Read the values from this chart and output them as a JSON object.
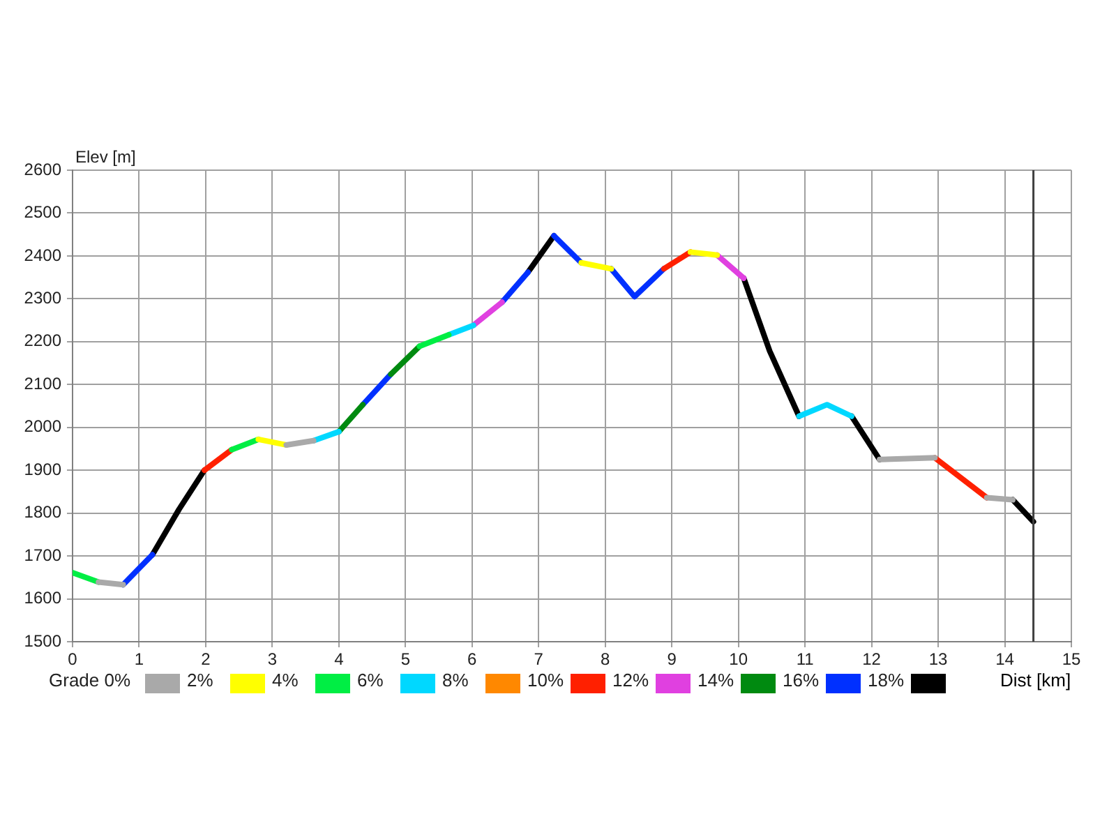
{
  "chart_data": {
    "type": "line",
    "ylabel": "Elev [m]",
    "xlabel": "Dist [km]",
    "legend_title": "Grade 0%",
    "legend": "bottom",
    "grid": true,
    "marker": "none",
    "line_style": "solid",
    "xlim": [
      0,
      15
    ],
    "xticks": [
      0,
      1,
      2,
      3,
      4,
      5,
      6,
      7,
      8,
      9,
      10,
      11,
      12,
      13,
      14,
      15
    ],
    "ylim": [
      1500,
      2600
    ],
    "yticks": [
      1500,
      1600,
      1700,
      1800,
      1900,
      2000,
      2100,
      2200,
      2300,
      2400,
      2500,
      2600
    ],
    "ref_lines": [
      {
        "axis": "x",
        "value": 14.43,
        "color": "#404040"
      }
    ],
    "series": [
      {
        "name": "2%",
        "color": "#a9a9a9",
        "x": [
          0.39,
          0.76,
          2.0,
          3.21,
          3.62,
          8.0,
          12.12,
          12.95,
          13.3,
          13.73,
          14.12
        ],
        "values": [
          1639,
          1633,
          null,
          1959,
          1969,
          null,
          1925,
          1929,
          null,
          1836,
          1831
        ]
      },
      {
        "name": "4%",
        "color": "#ffff00",
        "x": [
          2.79,
          3.21,
          5.5,
          7.64,
          8.09,
          8.7,
          9.28,
          9.68
        ],
        "values": [
          1972,
          1959,
          null,
          2384,
          2370,
          null,
          2409,
          2402
        ]
      },
      {
        "name": "6%",
        "color": "#00ee44",
        "x": [
          0,
          0.39,
          1.4,
          2.39,
          2.79,
          4.0,
          5.21,
          5.65
        ],
        "values": [
          1661,
          1639,
          null,
          1948,
          1972,
          null,
          2189,
          2216
        ]
      },
      {
        "name": "8%",
        "color": "#00d8ff",
        "x": [
          3.62,
          4.0,
          4.8,
          5.65,
          6.02,
          8.5,
          10.91,
          11.33,
          11.7
        ],
        "values": [
          1969,
          1990,
          null,
          2216,
          2238,
          null,
          2026,
          2053,
          2026
        ]
      },
      {
        "name": "10%",
        "color": "#ff8800"
      },
      {
        "name": "12%",
        "color": "#ff2000",
        "x": [
          1.98,
          2.39,
          5.6,
          8.88,
          9.28,
          11.1,
          12.95,
          13.73
        ],
        "values": [
          1900,
          1948,
          null,
          2370,
          2409,
          null,
          1929,
          1836
        ]
      },
      {
        "name": "14%",
        "color": "#e040e0",
        "x": [
          6.02,
          6.45,
          8.0,
          9.68,
          10.08
        ],
        "values": [
          2238,
          2292,
          null,
          2402,
          2348
        ]
      },
      {
        "name": "16%",
        "color": "#008a10",
        "x": [
          4.0,
          4.36,
          4.57,
          4.78,
          5.21
        ],
        "values": [
          1990,
          2053,
          null,
          2124,
          2189
        ]
      },
      {
        "name": "18%",
        "color": "#0030ff",
        "x": [
          0.76,
          1.2,
          2.8,
          4.36,
          4.78,
          5.6,
          6.45,
          6.84,
          7.03,
          7.23,
          7.64,
          7.86,
          8.09,
          8.44,
          8.88
        ],
        "values": [
          1633,
          1703,
          null,
          2053,
          2124,
          null,
          2292,
          2362,
          null,
          2447,
          2384,
          null,
          2370,
          2305,
          2370
        ]
      },
      {
        "color": "#000000",
        "x": [
          1.2,
          1.6,
          1.98,
          4.4,
          6.84,
          7.23,
          8.6,
          10.08,
          10.47,
          10.91,
          11.3,
          11.7,
          12.12,
          13.1,
          14.12,
          14.43
        ],
        "values": [
          1703,
          1809,
          1900,
          null,
          2362,
          2447,
          null,
          2348,
          2178,
          2026,
          null,
          2026,
          1925,
          null,
          1831,
          1780
        ]
      }
    ]
  }
}
